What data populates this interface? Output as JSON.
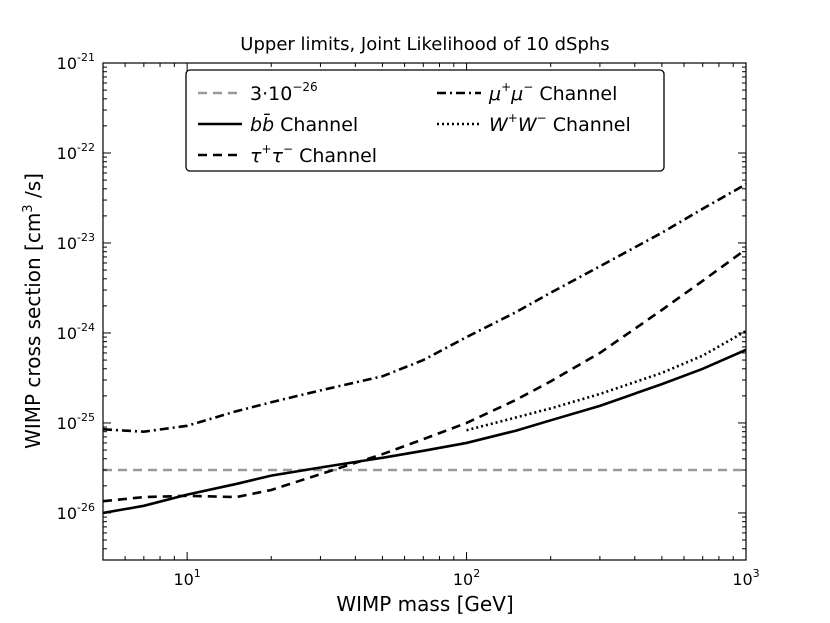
{
  "chart_data": {
    "type": "line",
    "title": "Upper limits, Joint Likelihood of 10 dSphs",
    "xlabel": "WIMP mass [GeV]",
    "ylabel_parts": {
      "main": "WIMP cross section [cm",
      "sup": "3",
      "end": " /s]"
    },
    "x_scale": "log",
    "y_scale": "log",
    "xlim": [
      5,
      1000
    ],
    "ylim": [
      3e-27,
      1e-21
    ],
    "grid": false,
    "legend_position": "top-center",
    "x_ticks": [
      {
        "value": 10,
        "base": "10",
        "exp": "1"
      },
      {
        "value": 100,
        "base": "10",
        "exp": "2"
      },
      {
        "value": 1000,
        "base": "10",
        "exp": "3"
      }
    ],
    "y_ticks": [
      {
        "value": 1e-26,
        "base": "10",
        "exp": "-26"
      },
      {
        "value": 1e-25,
        "base": "10",
        "exp": "-25"
      },
      {
        "value": 1e-24,
        "base": "10",
        "exp": "-24"
      },
      {
        "value": 1e-23,
        "base": "10",
        "exp": "-23"
      },
      {
        "value": 1e-22,
        "base": "10",
        "exp": "-22"
      },
      {
        "value": 1e-21,
        "base": "10",
        "exp": "-21"
      }
    ],
    "series": [
      {
        "name": "3·10⁻²⁶",
        "color": "#999999",
        "dash": "dashed",
        "x": [
          5,
          1000
        ],
        "y": [
          3e-26,
          3e-26
        ]
      },
      {
        "name": "bb̄ Channel",
        "color": "#000000",
        "dash": "solid",
        "x": [
          5,
          7,
          10,
          15,
          20,
          30,
          50,
          70,
          100,
          150,
          200,
          300,
          500,
          700,
          1000
        ],
        "y": [
          1e-26,
          1.2e-26,
          1.6e-26,
          2.1e-26,
          2.6e-26,
          3.2e-26,
          4.1e-26,
          4.9e-26,
          6e-26,
          8.2e-26,
          1.07e-25,
          1.55e-25,
          2.7e-25,
          4e-25,
          6.5e-25
        ]
      },
      {
        "name": "τ⁺τ⁻ Channel",
        "color": "#000000",
        "dash": "dashed",
        "x": [
          5,
          7,
          10,
          15,
          20,
          30,
          50,
          70,
          100,
          150,
          200,
          300,
          500,
          700,
          1000
        ],
        "y": [
          1.35e-26,
          1.5e-26,
          1.55e-26,
          1.5e-26,
          1.8e-26,
          2.7e-26,
          4.5e-26,
          6.6e-26,
          1e-25,
          1.8e-25,
          2.9e-25,
          6e-25,
          1.8e-24,
          3.8e-24,
          8.5e-24
        ]
      },
      {
        "name": "μ⁺μ⁻ Channel",
        "color": "#000000",
        "dash": "dashdot",
        "x": [
          5,
          7,
          10,
          15,
          20,
          30,
          50,
          70,
          100,
          150,
          200,
          300,
          500,
          700,
          1000
        ],
        "y": [
          8.5e-26,
          8e-26,
          9.3e-26,
          1.35e-25,
          1.7e-25,
          2.3e-25,
          3.3e-25,
          5e-25,
          9e-25,
          1.7e-24,
          2.8e-24,
          5.5e-24,
          1.3e-23,
          2.4e-23,
          4.5e-23
        ]
      },
      {
        "name": "W⁺W⁻ Channel",
        "color": "#000000",
        "dash": "dotted",
        "x": [
          100,
          150,
          200,
          300,
          500,
          700,
          1000
        ],
        "y": [
          8.3e-26,
          1.15e-25,
          1.45e-25,
          2.1e-25,
          3.6e-25,
          5.6e-25,
          1.05e-24
        ]
      }
    ]
  },
  "legend": {
    "item1": {
      "pre": "3·10",
      "sup": "−26",
      "post": ""
    },
    "item2": {
      "pre": "b",
      "mid": "b̄",
      "post": " Channel"
    },
    "item3": {
      "pre": "τ",
      "sup1": "+",
      "mid": "τ",
      "sup2": "−",
      "post": "  Channel"
    },
    "item4": {
      "pre": "μ",
      "sup1": "+",
      "mid": "μ",
      "sup2": "−",
      "post": "  Channel"
    },
    "item5": {
      "pre": "W",
      "sup1": "+",
      "mid": "W",
      "sup2": "−",
      "post": "  Channel"
    }
  }
}
